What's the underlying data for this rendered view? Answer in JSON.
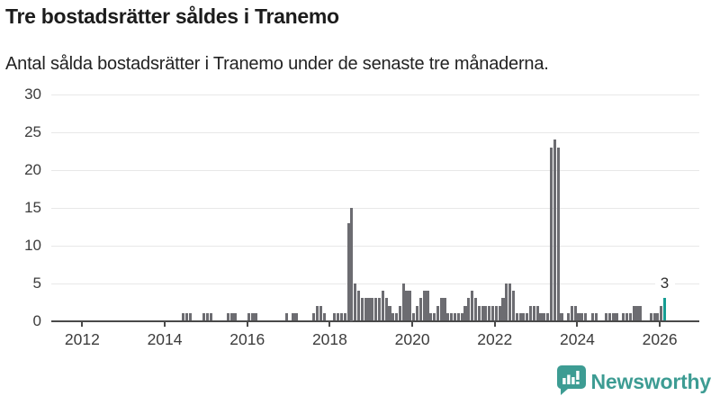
{
  "header": {
    "title": "Tre bostadsrätter såldes i Tranemo",
    "subtitle": "Antal sålda bostadsrätter i Tranemo under de senaste tre månaderna."
  },
  "footer": {
    "brand": "Newsworthy",
    "logo_icon": "bar-chart-speech-bubble-icon"
  },
  "colors": {
    "bar": "#6c6c71",
    "highlight": "#169d93",
    "axis": "#4a4a4a",
    "grid": "#e8e8e8",
    "brand": "#3d9c93"
  },
  "chart_data": {
    "type": "bar",
    "title": "Tre bostadsrätter såldes i Tranemo",
    "subtitle": "Antal sålda bostadsrätter i Tranemo under de senaste tre månaderna.",
    "frequency": "monthly",
    "x_start": "2011-04",
    "x_end": "2026-02",
    "ylim": [
      0,
      30
    ],
    "y_ticks": [
      0,
      5,
      10,
      15,
      20,
      25,
      30
    ],
    "x_tick_labels": [
      "2012",
      "2014",
      "2016",
      "2018",
      "2020",
      "2022",
      "2024",
      "2026"
    ],
    "grid": "horizontal",
    "legend": "none",
    "monthly": [
      {
        "year": 2011,
        "start_month": 4,
        "values": [
          0,
          0,
          0,
          0,
          0,
          0,
          0,
          0,
          0
        ]
      },
      {
        "year": 2012,
        "values": [
          0,
          0,
          0,
          0,
          0,
          0,
          0,
          0,
          0,
          0,
          0,
          0
        ]
      },
      {
        "year": 2013,
        "values": [
          0,
          0,
          0,
          0,
          0,
          0,
          0,
          0,
          0,
          0,
          0,
          0
        ]
      },
      {
        "year": 2014,
        "values": [
          0,
          0,
          0,
          0,
          0,
          1,
          1,
          1,
          0,
          0,
          0,
          1
        ]
      },
      {
        "year": 2015,
        "values": [
          1,
          1,
          0,
          0,
          0,
          0,
          1,
          1,
          1,
          0,
          0,
          0
        ]
      },
      {
        "year": 2016,
        "values": [
          1,
          1,
          1,
          0,
          0,
          0,
          0,
          0,
          0,
          0,
          0,
          1
        ]
      },
      {
        "year": 2017,
        "values": [
          0,
          1,
          1,
          0,
          0,
          0,
          0,
          1,
          2,
          2,
          1,
          0
        ]
      },
      {
        "year": 2018,
        "values": [
          0,
          1,
          1,
          1,
          1,
          13,
          15,
          5,
          4,
          3,
          3,
          3
        ]
      },
      {
        "year": 2019,
        "values": [
          3,
          3,
          3,
          4,
          3,
          2,
          1,
          1,
          2,
          5,
          4,
          4
        ]
      },
      {
        "year": 2020,
        "values": [
          1,
          2,
          3,
          4,
          4,
          1,
          1,
          2,
          3,
          3,
          1,
          1
        ]
      },
      {
        "year": 2021,
        "values": [
          1,
          1,
          1,
          2,
          3,
          4,
          3,
          2,
          2,
          2,
          2,
          2
        ]
      },
      {
        "year": 2022,
        "values": [
          2,
          2,
          3,
          5,
          5,
          4,
          1,
          1,
          1,
          1,
          2,
          2
        ]
      },
      {
        "year": 2023,
        "values": [
          2,
          1,
          1,
          1,
          23,
          24,
          23,
          1,
          0,
          1,
          2,
          2
        ]
      },
      {
        "year": 2024,
        "values": [
          1,
          1,
          1,
          0,
          1,
          1,
          0,
          0,
          1,
          1,
          1,
          1
        ]
      },
      {
        "year": 2025,
        "values": [
          0,
          1,
          1,
          1,
          2,
          2,
          2,
          0,
          0,
          1,
          1,
          1
        ]
      },
      {
        "year": 2026,
        "values": [
          2,
          3
        ]
      }
    ],
    "highlight": {
      "position": "last",
      "value": 3,
      "label": "3"
    }
  }
}
